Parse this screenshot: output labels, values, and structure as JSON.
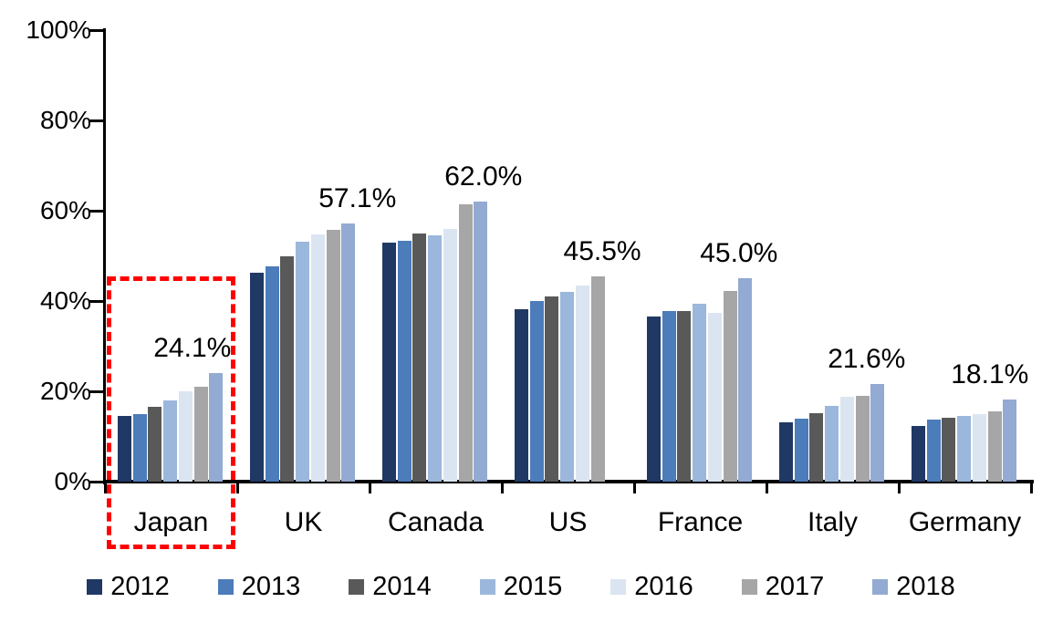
{
  "chart_data": {
    "type": "bar",
    "title": "",
    "categories": [
      "Japan",
      "UK",
      "Canada",
      "US",
      "France",
      "Italy",
      "Germany"
    ],
    "series": [
      {
        "name": "2012",
        "color": "#1F3864",
        "values": [
          14.6,
          46.3,
          53.0,
          38.2,
          36.5,
          13.2,
          12.4
        ]
      },
      {
        "name": "2013",
        "color": "#4C7CBA",
        "values": [
          14.9,
          47.7,
          53.4,
          40.0,
          37.8,
          14.0,
          13.7
        ]
      },
      {
        "name": "2014",
        "color": "#595959",
        "values": [
          16.5,
          49.9,
          54.9,
          41.0,
          37.7,
          15.1,
          14.1
        ]
      },
      {
        "name": "2015",
        "color": "#9BB7DC",
        "values": [
          18.0,
          53.2,
          54.5,
          42.0,
          39.4,
          16.7,
          14.5
        ]
      },
      {
        "name": "2016",
        "color": "#DBE5F1",
        "values": [
          20.0,
          54.8,
          56.0,
          43.5,
          37.4,
          18.8,
          15.0
        ]
      },
      {
        "name": "2017",
        "color": "#A6A6A6",
        "values": [
          21.0,
          55.8,
          61.5,
          45.5,
          42.3,
          18.9,
          15.5
        ]
      },
      {
        "name": "2018",
        "color": "#93AAD2",
        "values": [
          24.1,
          57.1,
          62.0,
          null,
          45.0,
          21.6,
          18.1
        ]
      }
    ],
    "data_labels": [
      "24.1%",
      "57.1%",
      "62.0%",
      "45.5%",
      "45.0%",
      "21.6%",
      "18.1%"
    ],
    "y_axis": {
      "min": 0,
      "max": 100,
      "tick_labels": [
        "100%",
        "80%",
        "60%",
        "40%",
        "20%",
        "0%"
      ]
    },
    "legend": {
      "position": "bottom",
      "entries": [
        "2012",
        "2013",
        "2014",
        "2015",
        "2016",
        "2017",
        "2018"
      ]
    },
    "highlight": {
      "category": "Japan",
      "shape": "red-dashed-box",
      "color": "#FF0000"
    },
    "grid": false,
    "layout_hints": {
      "label_dx": [
        -26,
        10,
        3,
        5,
        -7,
        -12,
        -22
      ]
    }
  }
}
